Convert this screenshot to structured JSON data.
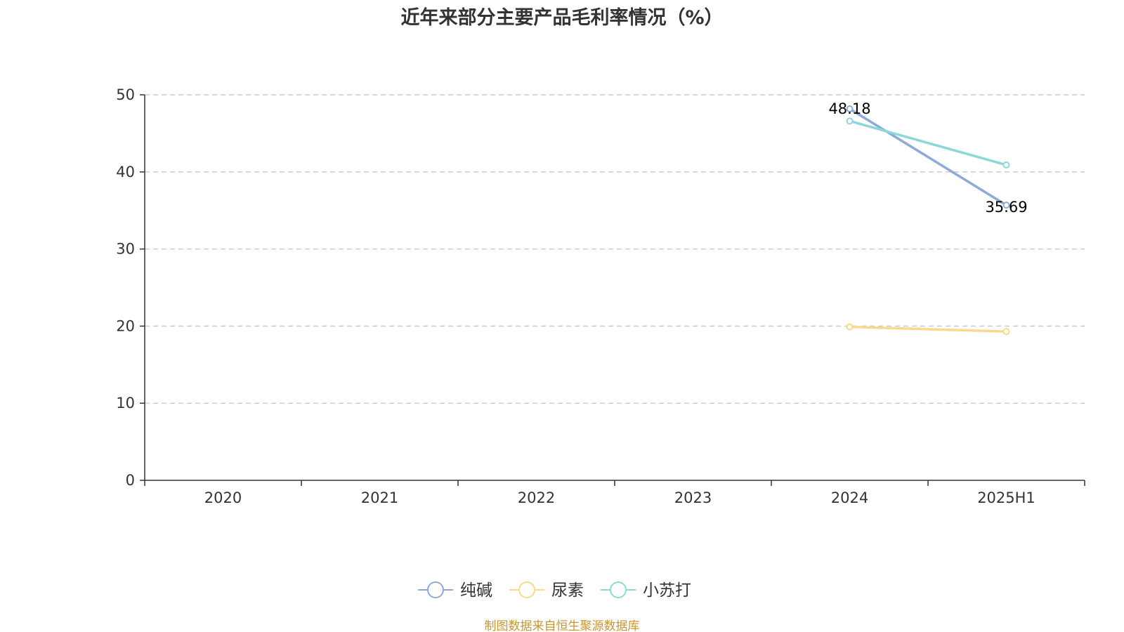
{
  "chart_data": {
    "type": "line",
    "title": "近年来部分主要产品毛利率情况（%）",
    "categories": [
      "2020",
      "2021",
      "2022",
      "2023",
      "2024",
      "2025H1"
    ],
    "ylim": [
      0,
      50
    ],
    "yticks": [
      0,
      10,
      20,
      30,
      40,
      50
    ],
    "grid": true,
    "legend_position": "bottom-center",
    "series": [
      {
        "name": "纯碱",
        "color": "#8eaad8",
        "values": [
          null,
          null,
          null,
          null,
          48.18,
          35.69
        ],
        "labels": [
          "",
          "",
          "",
          "",
          "48.18",
          "35.69"
        ],
        "label_position": [
          "",
          "",
          "",
          "",
          "above",
          "below"
        ]
      },
      {
        "name": "尿素",
        "color": "#f9d98c",
        "values": [
          null,
          null,
          null,
          null,
          19.9,
          19.3
        ],
        "labels": [
          "",
          "",
          "",
          "",
          "",
          ""
        ],
        "label_position": [
          "",
          "",
          "",
          "",
          "",
          ""
        ]
      },
      {
        "name": "小苏打",
        "color": "#8dd6d9",
        "values": [
          null,
          null,
          null,
          null,
          46.6,
          40.9
        ],
        "labels": [
          "",
          "",
          "",
          "",
          "",
          ""
        ],
        "label_position": [
          "",
          "",
          "",
          "",
          "",
          ""
        ]
      }
    ]
  },
  "source": {
    "text": "制图数据来自恒生聚源数据库",
    "color": "#c8962e"
  },
  "colors": {
    "axis": "#333333",
    "grid": "#cccccc",
    "text": "#333333"
  }
}
